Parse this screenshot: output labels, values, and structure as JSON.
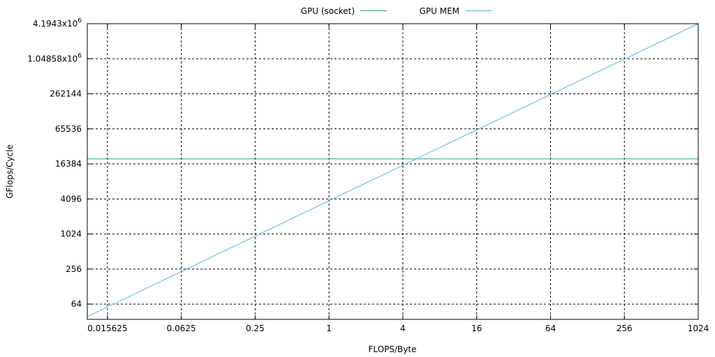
{
  "chart_data": {
    "type": "line",
    "xlabel": "FLOPS/Byte",
    "ylabel": "GFlops/Cycle",
    "x_scale": "log2",
    "y_scale": "log2",
    "xlim": [
      0.0107,
      1024
    ],
    "ylim": [
      35,
      4194304
    ],
    "x_ticks": [
      {
        "value": 0.015625,
        "label": "0.015625"
      },
      {
        "value": 0.0625,
        "label": "0.0625"
      },
      {
        "value": 0.25,
        "label": "0.25"
      },
      {
        "value": 1,
        "label": "1"
      },
      {
        "value": 4,
        "label": "4"
      },
      {
        "value": 16,
        "label": "16"
      },
      {
        "value": 64,
        "label": "64"
      },
      {
        "value": 256,
        "label": "256"
      },
      {
        "value": 1024,
        "label": "1024"
      }
    ],
    "y_ticks": [
      {
        "value": 64,
        "label": "64",
        "sup": ""
      },
      {
        "value": 256,
        "label": "256",
        "sup": ""
      },
      {
        "value": 1024,
        "label": "1024",
        "sup": ""
      },
      {
        "value": 4096,
        "label": "4096",
        "sup": ""
      },
      {
        "value": 16384,
        "label": "16384",
        "sup": ""
      },
      {
        "value": 65536,
        "label": "65536",
        "sup": ""
      },
      {
        "value": 262144,
        "label": "262144",
        "sup": ""
      },
      {
        "value": 1048576,
        "label": "1.04858x10",
        "sup": "6"
      },
      {
        "value": 4194304,
        "label": "4.1943x10",
        "sup": "6"
      }
    ],
    "grid": true,
    "legend_position": "top",
    "series": [
      {
        "name": "GPU (socket)",
        "color": "#2e9b79",
        "x": [
          0.0107,
          1024
        ],
        "y": [
          20000,
          20000
        ]
      },
      {
        "name": "GPU MEM",
        "color": "#5ab4dc",
        "x": [
          0.0107,
          1024
        ],
        "y": [
          39,
          4194304
        ]
      }
    ]
  }
}
